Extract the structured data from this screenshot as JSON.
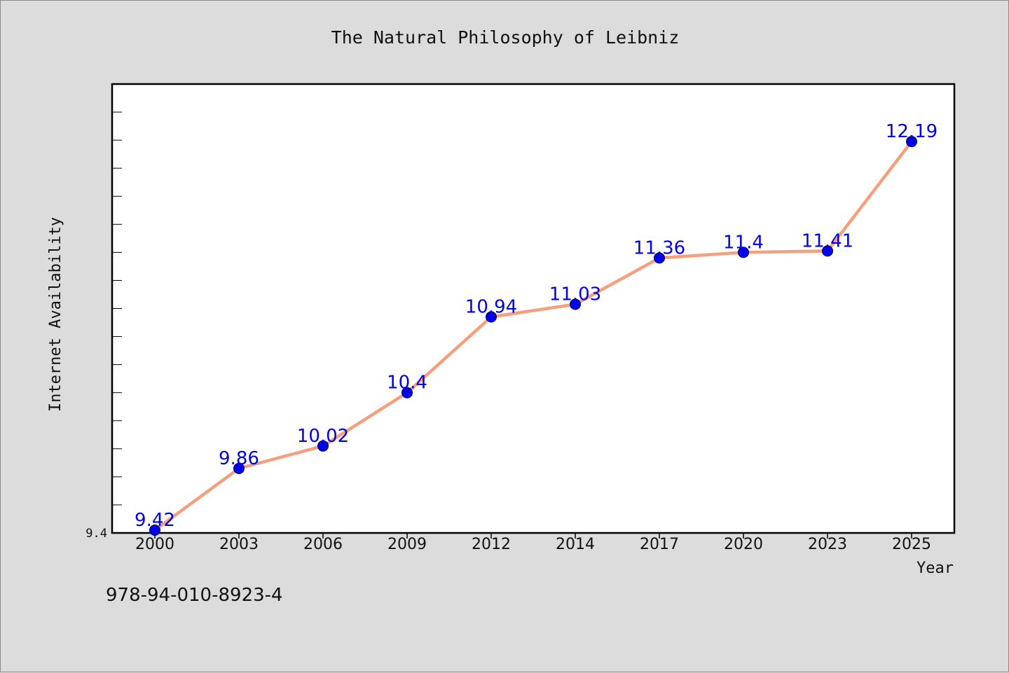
{
  "chart_data": {
    "type": "line",
    "title": "The Natural Philosophy of Leibniz",
    "xlabel": "Year",
    "ylabel": "Internet Availability",
    "categories": [
      "2000",
      "2003",
      "2006",
      "2009",
      "2012",
      "2014",
      "2017",
      "2020",
      "2023",
      "2025"
    ],
    "series": [
      {
        "values": [
          9.42,
          9.86,
          10.02,
          10.4,
          10.94,
          11.03,
          11.36,
          11.4,
          11.41,
          12.19
        ],
        "data_labels": [
          "9.42",
          "9.86",
          "10.02",
          "10.4",
          "10.94",
          "11.03",
          "11.36",
          "11.4",
          "11.41",
          "12.19"
        ]
      }
    ],
    "ylim": [
      9.4,
      12.6
    ],
    "y_tick_labels": [
      "9.4"
    ],
    "grid": false,
    "legend": "none",
    "colors": {
      "line": "#f4a07e",
      "marker": "#0000ee",
      "data_label": "#0000ee",
      "plot_background": "#ffffff",
      "figure_background": "#dcdcdc"
    }
  },
  "footer": {
    "code": "978-94-010-8923-4"
  }
}
